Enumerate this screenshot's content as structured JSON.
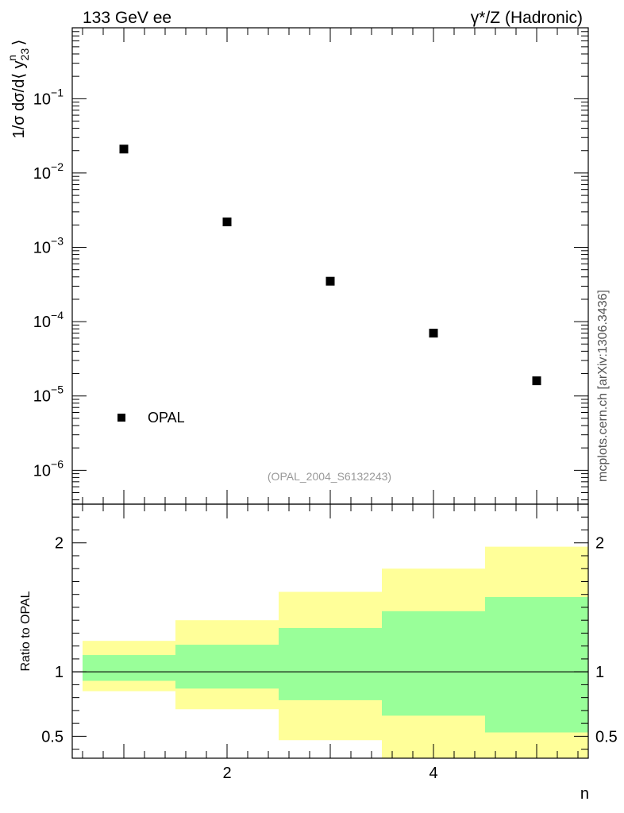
{
  "header": {
    "left_title": "133 GeV ee",
    "right_title": "γ*/Z (Hadronic)"
  },
  "side_label": "mcplots.cern.ch [arXiv:1306.3436]",
  "analysis_tag": "(OPAL_2004_S6132243)",
  "chart_data": [
    {
      "type": "scatter",
      "panel": "main",
      "ylabel": "1/σ dσ/d⟨ y23n ⟩",
      "yscale": "log",
      "ylim": [
        3.5e-07,
        0.9
      ],
      "xlim": [
        0.5,
        5.5
      ],
      "series": [
        {
          "name": "OPAL",
          "marker": "square",
          "color": "#000000",
          "x": [
            1,
            2,
            3,
            4,
            5
          ],
          "y": [
            0.021,
            0.0022,
            0.00035,
            7e-05,
            1.6e-05
          ]
        }
      ],
      "ytick_labels": [
        {
          "v": 1e-06,
          "base": "10",
          "exp": "−6"
        },
        {
          "v": 1e-05,
          "base": "10",
          "exp": "−5"
        },
        {
          "v": 0.0001,
          "base": "10",
          "exp": "−4"
        },
        {
          "v": 0.001,
          "base": "10",
          "exp": "−3"
        },
        {
          "v": 0.01,
          "base": "10",
          "exp": "−2"
        },
        {
          "v": 0.1,
          "base": "10",
          "exp": "−1"
        }
      ],
      "legend": {
        "entry": "OPAL",
        "placement": "bottom-left"
      }
    },
    {
      "type": "area",
      "panel": "ratio",
      "ylabel": "Ratio to OPAL",
      "ylim": [
        0.33,
        2.3
      ],
      "xlim": [
        0.5,
        5.5
      ],
      "xlabel": "n",
      "xtick_labels": [
        {
          "v": 2,
          "label": "2"
        },
        {
          "v": 4,
          "label": "4"
        }
      ],
      "ytick_labels": [
        {
          "v": 0.5,
          "label": "0.5"
        },
        {
          "v": 1,
          "label": "1"
        },
        {
          "v": 2,
          "label": "2"
        }
      ],
      "bins": [
        {
          "lo": 0.6,
          "hi": 1.5,
          "inner": [
            0.93,
            1.13
          ],
          "outer": [
            0.85,
            1.24
          ]
        },
        {
          "lo": 1.5,
          "hi": 2.5,
          "inner": [
            0.87,
            1.21
          ],
          "outer": [
            0.71,
            1.4
          ]
        },
        {
          "lo": 2.5,
          "hi": 3.5,
          "inner": [
            0.78,
            1.34
          ],
          "outer": [
            0.47,
            1.62
          ]
        },
        {
          "lo": 3.5,
          "hi": 4.5,
          "inner": [
            0.66,
            1.47
          ],
          "outer": [
            0.33,
            1.8
          ]
        },
        {
          "lo": 4.5,
          "hi": 5.5,
          "inner": [
            0.53,
            1.58
          ],
          "outer": [
            0.33,
            1.97
          ]
        }
      ],
      "reference_line": 1,
      "colors": {
        "inner": "#99ff99",
        "outer": "#ffff99"
      }
    }
  ]
}
